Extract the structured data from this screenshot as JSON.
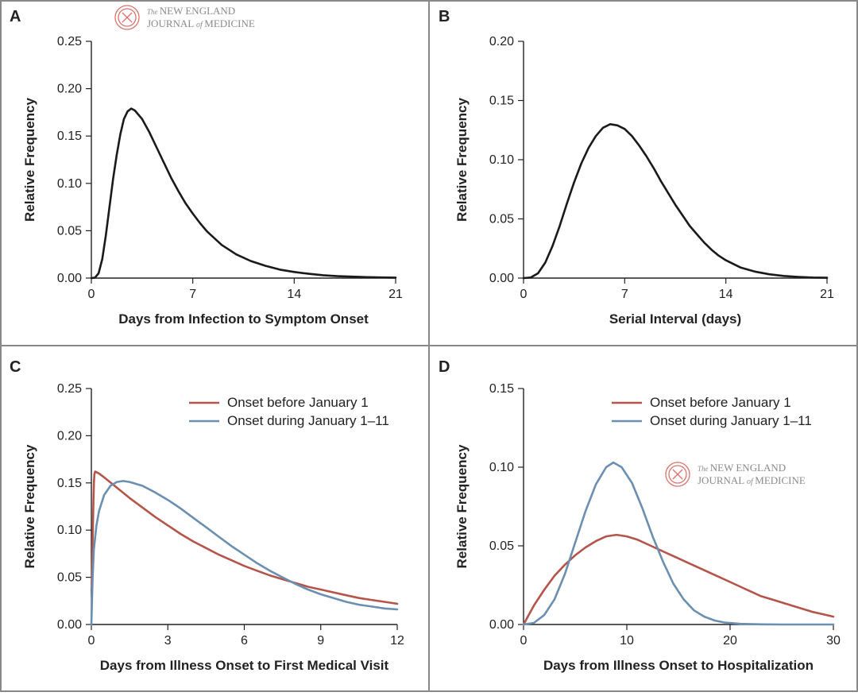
{
  "watermarks": [
    {
      "line1_small": "The",
      "line1": "NEW ENGLAND",
      "line2": "JOURNAL",
      "line2_small": "of",
      "line3": "MEDICINE",
      "seal_color": "#d9736c"
    },
    {
      "line1_small": "The",
      "line1": "NEW ENGLAND",
      "line2": "JOURNAL",
      "line2_small": "of",
      "line3": "MEDICINE",
      "seal_color": "#d9736c"
    }
  ],
  "chart_data": [
    {
      "panel": "A",
      "type": "line",
      "xlabel": "Days from Infection to Symptom Onset",
      "ylabel": "Relative Frequency",
      "xlim": [
        0,
        21
      ],
      "ylim": [
        0,
        0.25
      ],
      "xticks": [
        0,
        7,
        14,
        21
      ],
      "yticks": [
        "0.00",
        "0.05",
        "0.10",
        "0.15",
        "0.20",
        "0.25"
      ],
      "legend": [],
      "series": [
        {
          "name": "",
          "color": "#1a1a1a",
          "points": [
            [
              0,
              0
            ],
            [
              0.25,
              0.0005
            ],
            [
              0.5,
              0.005
            ],
            [
              0.75,
              0.02
            ],
            [
              1,
              0.045
            ],
            [
              1.25,
              0.075
            ],
            [
              1.5,
              0.105
            ],
            [
              1.75,
              0.13
            ],
            [
              2,
              0.152
            ],
            [
              2.25,
              0.168
            ],
            [
              2.5,
              0.176
            ],
            [
              2.75,
              0.179
            ],
            [
              3,
              0.177
            ],
            [
              3.5,
              0.168
            ],
            [
              4,
              0.154
            ],
            [
              4.5,
              0.138
            ],
            [
              5,
              0.122
            ],
            [
              5.5,
              0.106
            ],
            [
              6,
              0.092
            ],
            [
              6.5,
              0.079
            ],
            [
              7,
              0.068
            ],
            [
              7.5,
              0.058
            ],
            [
              8,
              0.049
            ],
            [
              9,
              0.035
            ],
            [
              10,
              0.025
            ],
            [
              11,
              0.018
            ],
            [
              12,
              0.013
            ],
            [
              13,
              0.009
            ],
            [
              14,
              0.0065
            ],
            [
              15,
              0.0045
            ],
            [
              16,
              0.003
            ],
            [
              17,
              0.002
            ],
            [
              18,
              0.0015
            ],
            [
              19,
              0.001
            ],
            [
              20,
              0.0007
            ],
            [
              21,
              0.0005
            ]
          ]
        }
      ]
    },
    {
      "panel": "B",
      "type": "line",
      "xlabel": "Serial Interval (days)",
      "ylabel": "Relative Frequency",
      "xlim": [
        0,
        21
      ],
      "ylim": [
        0,
        0.2
      ],
      "xticks": [
        0,
        7,
        14,
        21
      ],
      "yticks": [
        "0.00",
        "0.05",
        "0.10",
        "0.15",
        "0.20"
      ],
      "legend": [],
      "series": [
        {
          "name": "",
          "color": "#1a1a1a",
          "points": [
            [
              0,
              0
            ],
            [
              0.5,
              0.0005
            ],
            [
              1,
              0.004
            ],
            [
              1.5,
              0.013
            ],
            [
              2,
              0.027
            ],
            [
              2.5,
              0.044
            ],
            [
              3,
              0.063
            ],
            [
              3.5,
              0.081
            ],
            [
              4,
              0.097
            ],
            [
              4.5,
              0.11
            ],
            [
              5,
              0.12
            ],
            [
              5.5,
              0.127
            ],
            [
              6,
              0.13
            ],
            [
              6.5,
              0.129
            ],
            [
              7,
              0.126
            ],
            [
              7.5,
              0.12
            ],
            [
              8,
              0.112
            ],
            [
              8.5,
              0.103
            ],
            [
              9,
              0.093
            ],
            [
              9.5,
              0.082
            ],
            [
              10,
              0.072
            ],
            [
              10.5,
              0.062
            ],
            [
              11,
              0.053
            ],
            [
              11.5,
              0.044
            ],
            [
              12,
              0.037
            ],
            [
              12.5,
              0.03
            ],
            [
              13,
              0.024
            ],
            [
              13.5,
              0.019
            ],
            [
              14,
              0.015
            ],
            [
              15,
              0.009
            ],
            [
              16,
              0.0055
            ],
            [
              17,
              0.0032
            ],
            [
              18,
              0.0018
            ],
            [
              19,
              0.001
            ],
            [
              20,
              0.0005
            ],
            [
              21,
              0.0003
            ]
          ]
        }
      ]
    },
    {
      "panel": "C",
      "type": "line",
      "xlabel": "Days from Illness Onset to First Medical Visit",
      "ylabel": "Relative Frequency",
      "xlim": [
        0,
        12
      ],
      "ylim": [
        0,
        0.25
      ],
      "xticks": [
        0,
        3,
        6,
        9,
        12
      ],
      "yticks": [
        "0.00",
        "0.05",
        "0.10",
        "0.15",
        "0.20",
        "0.25"
      ],
      "legend": [
        "Onset before January 1",
        "Onset during January 1–11"
      ],
      "series": [
        {
          "name": "Onset before January 1",
          "color": "#b5544a",
          "points": [
            [
              0.02,
              0.04
            ],
            [
              0.05,
              0.09
            ],
            [
              0.08,
              0.13
            ],
            [
              0.1,
              0.15
            ],
            [
              0.12,
              0.159
            ],
            [
              0.15,
              0.162
            ],
            [
              0.3,
              0.16
            ],
            [
              0.5,
              0.156
            ],
            [
              1,
              0.145
            ],
            [
              1.5,
              0.134
            ],
            [
              2,
              0.124
            ],
            [
              2.5,
              0.114
            ],
            [
              3,
              0.105
            ],
            [
              3.5,
              0.096
            ],
            [
              4,
              0.088
            ],
            [
              4.5,
              0.081
            ],
            [
              5,
              0.074
            ],
            [
              5.5,
              0.068
            ],
            [
              6,
              0.062
            ],
            [
              6.5,
              0.057
            ],
            [
              7,
              0.052
            ],
            [
              7.5,
              0.048
            ],
            [
              8,
              0.044
            ],
            [
              8.5,
              0.04
            ],
            [
              9,
              0.037
            ],
            [
              9.5,
              0.034
            ],
            [
              10,
              0.031
            ],
            [
              10.5,
              0.028
            ],
            [
              11,
              0.026
            ],
            [
              11.5,
              0.024
            ],
            [
              12,
              0.022
            ]
          ]
        },
        {
          "name": "Onset during January 1–11",
          "color": "#6b8fb0",
          "points": [
            [
              0,
              0
            ],
            [
              0.05,
              0.05
            ],
            [
              0.1,
              0.08
            ],
            [
              0.2,
              0.105
            ],
            [
              0.3,
              0.12
            ],
            [
              0.5,
              0.137
            ],
            [
              0.75,
              0.147
            ],
            [
              1,
              0.151
            ],
            [
              1.25,
              0.152
            ],
            [
              1.5,
              0.151
            ],
            [
              2,
              0.147
            ],
            [
              2.5,
              0.14
            ],
            [
              3,
              0.132
            ],
            [
              3.5,
              0.123
            ],
            [
              4,
              0.113
            ],
            [
              4.5,
              0.103
            ],
            [
              5,
              0.093
            ],
            [
              5.5,
              0.083
            ],
            [
              6,
              0.074
            ],
            [
              6.5,
              0.065
            ],
            [
              7,
              0.057
            ],
            [
              7.5,
              0.05
            ],
            [
              8,
              0.043
            ],
            [
              8.5,
              0.037
            ],
            [
              9,
              0.032
            ],
            [
              9.5,
              0.028
            ],
            [
              10,
              0.024
            ],
            [
              10.5,
              0.021
            ],
            [
              11,
              0.019
            ],
            [
              11.5,
              0.017
            ],
            [
              12,
              0.016
            ]
          ]
        }
      ]
    },
    {
      "panel": "D",
      "type": "line",
      "xlabel": "Days from Illness Onset to Hospitalization",
      "ylabel": "Relative Frequency",
      "xlim": [
        0,
        30
      ],
      "ylim": [
        0,
        0.15
      ],
      "xticks": [
        0,
        10,
        20,
        30
      ],
      "yticks": [
        "0.00",
        "0.05",
        "0.10",
        "0.15"
      ],
      "legend": [
        "Onset before January 1",
        "Onset during January 1–11"
      ],
      "series": [
        {
          "name": "Onset before January 1",
          "color": "#b5544a",
          "points": [
            [
              0,
              0
            ],
            [
              1,
              0.012
            ],
            [
              2,
              0.022
            ],
            [
              3,
              0.031
            ],
            [
              4,
              0.038
            ],
            [
              5,
              0.044
            ],
            [
              6,
              0.049
            ],
            [
              7,
              0.053
            ],
            [
              8,
              0.056
            ],
            [
              9,
              0.057
            ],
            [
              10,
              0.056
            ],
            [
              11,
              0.054
            ],
            [
              12,
              0.051
            ],
            [
              13,
              0.048
            ],
            [
              14,
              0.045
            ],
            [
              15,
              0.042
            ],
            [
              16,
              0.039
            ],
            [
              17,
              0.036
            ],
            [
              18,
              0.033
            ],
            [
              19,
              0.03
            ],
            [
              20,
              0.027
            ],
            [
              21,
              0.024
            ],
            [
              22,
              0.021
            ],
            [
              23,
              0.018
            ],
            [
              24,
              0.016
            ],
            [
              25,
              0.014
            ],
            [
              26,
              0.012
            ],
            [
              27,
              0.01
            ],
            [
              28,
              0.008
            ],
            [
              29,
              0.0065
            ],
            [
              30,
              0.005
            ]
          ]
        },
        {
          "name": "Onset during January 1–11",
          "color": "#6b8fb0",
          "points": [
            [
              0,
              0
            ],
            [
              1,
              0.001
            ],
            [
              2,
              0.006
            ],
            [
              3,
              0.016
            ],
            [
              4,
              0.032
            ],
            [
              5,
              0.052
            ],
            [
              6,
              0.072
            ],
            [
              7,
              0.089
            ],
            [
              8,
              0.1
            ],
            [
              8.7,
              0.103
            ],
            [
              9.5,
              0.1
            ],
            [
              10.5,
              0.09
            ],
            [
              11.5,
              0.074
            ],
            [
              12.5,
              0.056
            ],
            [
              13.5,
              0.04
            ],
            [
              14.5,
              0.026
            ],
            [
              15.5,
              0.016
            ],
            [
              16.5,
              0.009
            ],
            [
              17.5,
              0.005
            ],
            [
              18.5,
              0.0025
            ],
            [
              19.5,
              0.0012
            ],
            [
              21,
              0.0004
            ],
            [
              23,
              0.0001
            ],
            [
              25,
              0
            ],
            [
              30,
              0
            ]
          ]
        }
      ]
    }
  ]
}
